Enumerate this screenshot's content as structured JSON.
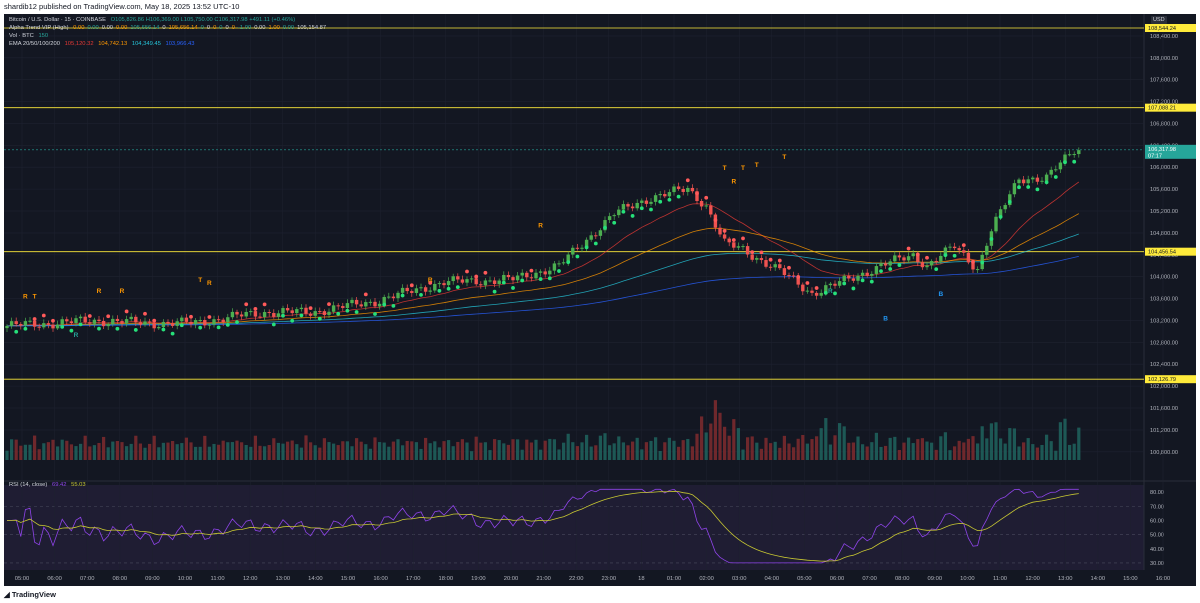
{
  "header": {
    "publisher_text": "shardib12 published on TradingView.com, May 18, 2025 13:52 UTC-10"
  },
  "footer": {
    "brand": "TradingView"
  },
  "chart_data": {
    "type": "candlestick",
    "symbol_line": "Bitcoin / U.S. Dollar · 15 · COINBASE",
    "ohlc_line": "O105,826.86 H106,369.00 L105,750.00 C106,317.98 +491.11 (+0.46%)",
    "currency_label": "USD",
    "indicators": {
      "alpha_trend": {
        "label": "Alpha Trend VIP (High)",
        "values": [
          "0.00",
          "0.00",
          "0.00",
          "0.00",
          "105,656.14",
          "0",
          "105,656.14",
          "0",
          "0",
          "0",
          "0",
          "0",
          "0",
          "-1.00",
          "0.00",
          "1.00",
          "0.00",
          "105,154.87"
        ]
      },
      "vol": {
        "label": "Vol · BTC",
        "value": "150"
      },
      "ema": {
        "label": "EMA 20/50/100/200",
        "values": [
          "105,120.32",
          "104,742.13",
          "104,349.45",
          "103,966.43"
        ],
        "colors": [
          "#e53935",
          "#ff9800",
          "#26c6da",
          "#2962ff"
        ]
      },
      "rsi": {
        "label": "RSI (14, close)",
        "value": "69.42",
        "ma_value": "55.03"
      }
    },
    "price_axis": {
      "ticks": [
        "108,400.00",
        "108,000.00",
        "107,600.00",
        "107,200.00",
        "106,800.00",
        "106,400.00",
        "106,000.00",
        "105,600.00",
        "105,200.00",
        "104,800.00",
        "104,400.00",
        "104,000.00",
        "103,600.00",
        "103,200.00",
        "102,800.00",
        "102,400.00",
        "102,000.00",
        "101,600.00",
        "101,200.00",
        "100,800.00"
      ],
      "ylim": [
        100650,
        108800
      ]
    },
    "rsi_axis": {
      "ticks": [
        "80.00",
        "70.00",
        "60.00",
        "50.00",
        "40.00",
        "30.00"
      ],
      "ylim": [
        25,
        85
      ]
    },
    "price_label": {
      "price": "106,317.98",
      "countdown": "07:17"
    },
    "horizontal_levels": [
      108544.24,
      107088.21,
      104456.54,
      102126.79
    ],
    "level_labels": [
      "108,544.24",
      "107,088.21",
      "104,456.54",
      "102,126.79"
    ],
    "x_ticks": [
      "05:00",
      "06:00",
      "07:00",
      "08:00",
      "09:00",
      "10:00",
      "11:00",
      "12:00",
      "13:00",
      "14:00",
      "15:00",
      "16:00",
      "17:00",
      "18:00",
      "19:00",
      "20:00",
      "21:00",
      "22:00",
      "23:00",
      "18",
      "01:00",
      "02:00",
      "03:00",
      "04:00",
      "05:00",
      "06:00",
      "07:00",
      "08:00",
      "09:00",
      "10:00",
      "11:00",
      "12:00",
      "13:00",
      "14:00",
      "15:00",
      "16:00"
    ],
    "anchors": [
      [
        0,
        103100
      ],
      [
        10,
        103150
      ],
      [
        20,
        103200
      ],
      [
        30,
        103150
      ],
      [
        40,
        103150
      ],
      [
        48,
        103250
      ],
      [
        56,
        103350
      ],
      [
        66,
        103350
      ],
      [
        80,
        103550
      ],
      [
        95,
        103900
      ],
      [
        110,
        103950
      ],
      [
        120,
        104200
      ],
      [
        132,
        105150
      ],
      [
        140,
        105450
      ],
      [
        148,
        105600
      ],
      [
        152,
        105300
      ],
      [
        156,
        104600
      ],
      [
        160,
        104500
      ],
      [
        168,
        104100
      ],
      [
        175,
        103700
      ],
      [
        180,
        103850
      ],
      [
        190,
        104200
      ],
      [
        197,
        104400
      ],
      [
        200,
        104200
      ],
      [
        206,
        104550
      ],
      [
        211,
        104150
      ],
      [
        214,
        104850
      ],
      [
        220,
        105800
      ],
      [
        226,
        105800
      ],
      [
        232,
        106320
      ]
    ],
    "signals": [
      {
        "text": "R",
        "i": 4,
        "price": 103600,
        "color": "#ff9800"
      },
      {
        "text": "T",
        "i": 6,
        "price": 103600,
        "color": "#ff9800"
      },
      {
        "text": "R",
        "i": 15,
        "price": 102900,
        "color": "#26a69a"
      },
      {
        "text": "R",
        "i": 20,
        "price": 103700,
        "color": "#ff9800"
      },
      {
        "text": "R",
        "i": 25,
        "price": 103700,
        "color": "#ff9800"
      },
      {
        "text": "T",
        "i": 42,
        "price": 103900,
        "color": "#ff9800"
      },
      {
        "text": "R",
        "i": 44,
        "price": 103850,
        "color": "#ff9800"
      },
      {
        "text": "R",
        "i": 92,
        "price": 103900,
        "color": "#ff9800"
      },
      {
        "text": "R",
        "i": 116,
        "price": 104900,
        "color": "#ff9800"
      },
      {
        "text": "T",
        "i": 156,
        "price": 105950,
        "color": "#ff9800"
      },
      {
        "text": "R",
        "i": 158,
        "price": 105700,
        "color": "#ff9800"
      },
      {
        "text": "T",
        "i": 160,
        "price": 105950,
        "color": "#ff9800"
      },
      {
        "text": "T",
        "i": 163,
        "price": 106000,
        "color": "#ff9800"
      },
      {
        "text": "T",
        "i": 169,
        "price": 106150,
        "color": "#ff9800"
      },
      {
        "text": "R",
        "i": 179,
        "price": 103700,
        "color": "#26a69a"
      },
      {
        "text": "B",
        "i": 191,
        "price": 103200,
        "color": "#2196f3"
      },
      {
        "text": "B",
        "i": 203,
        "price": 103650,
        "color": "#2196f3"
      }
    ],
    "x_label": "",
    "y_label": "",
    "grid": true,
    "colors": {
      "up": "#26a69a",
      "bull_candle": "#4caf50",
      "down": "#ef5350",
      "background": "#131722",
      "grid": "#1e2230",
      "level": "#ffeb3b",
      "rsi_line": "#8e44e8",
      "rsi_ma": "#c8c832"
    }
  }
}
